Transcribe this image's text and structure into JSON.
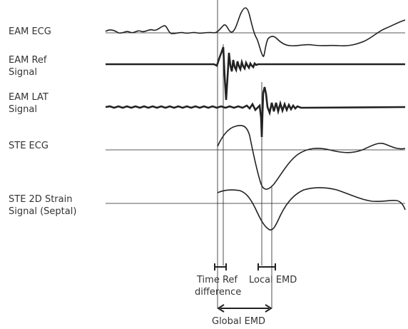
{
  "signal_labels": {
    "eam_ecg": "EAM ECG",
    "eam_ref_line1": "EAM Ref",
    "eam_ref_line2": "Signal",
    "eam_lat_line1": "EAM LAT",
    "eam_lat_line2": "Signal",
    "ste_ecg": "STE ECG",
    "ste_strain_line1": "STE 2D Strain",
    "ste_strain_line2": "Signal (Septal)"
  },
  "annotations": {
    "time_ref_line1": "Time Ref",
    "time_ref_line2": "difference",
    "local_emd": "Local EMD",
    "global_emd": "Global EMD"
  },
  "colors": {
    "trace": "#222222",
    "text": "#333333",
    "background": "#ffffff"
  }
}
